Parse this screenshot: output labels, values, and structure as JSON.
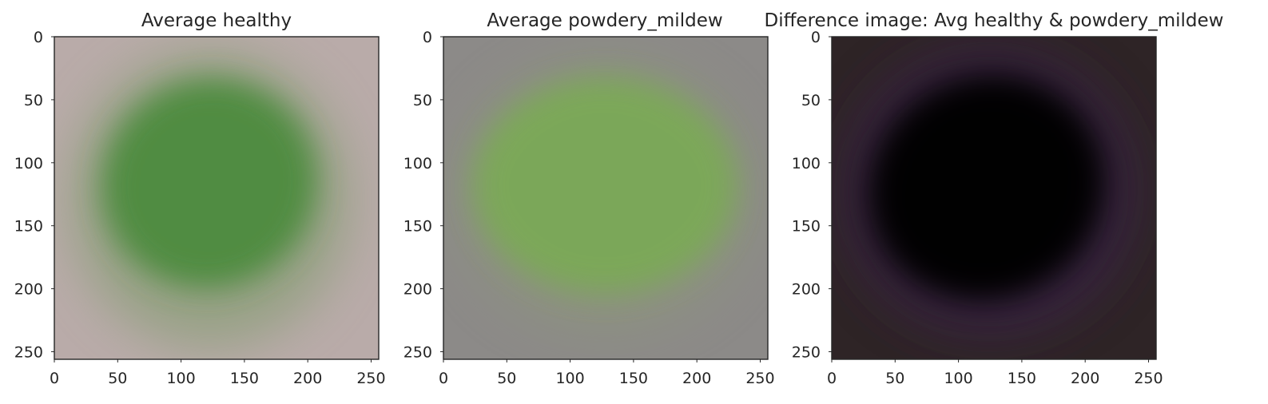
{
  "chart_data": [
    {
      "type": "heatmap",
      "title": "Average healthy",
      "xlim": [
        0,
        256
      ],
      "ylim": [
        256,
        0
      ],
      "xticks": [
        0,
        50,
        100,
        150,
        200,
        250
      ],
      "yticks": [
        0,
        50,
        100,
        150,
        200,
        250
      ],
      "grid": false,
      "colors": {
        "background": "#b9aba9",
        "leaf": "#4a8a3a",
        "leaf_edge": "#7a9a68"
      }
    },
    {
      "type": "heatmap",
      "title": "Average powdery_mildew",
      "xlim": [
        0,
        256
      ],
      "ylim": [
        256,
        0
      ],
      "xticks": [
        0,
        50,
        100,
        150,
        200,
        250
      ],
      "yticks": [
        0,
        50,
        100,
        150,
        200,
        250
      ],
      "grid": false,
      "colors": {
        "background": "#8c8a88",
        "leaf": "#7aaa55",
        "leaf_edge": "#8e9a78"
      }
    },
    {
      "type": "heatmap",
      "title": "Difference image: Avg healthy & powdery_mildew",
      "xlim": [
        0,
        256
      ],
      "ylim": [
        256,
        0
      ],
      "xticks": [
        0,
        50,
        100,
        150,
        200,
        250
      ],
      "yticks": [
        0,
        50,
        100,
        150,
        200,
        250
      ],
      "grid": false,
      "colors": {
        "background": "#2e2426",
        "leaf": "#020104",
        "leaf_edge": "#3a2448"
      }
    }
  ]
}
